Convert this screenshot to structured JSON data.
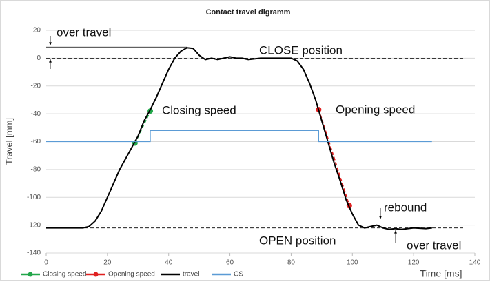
{
  "chart_data": {
    "type": "line",
    "title": "Contact travel digramm",
    "xlabel": "Time [ms]",
    "ylabel": "Travel [mm]",
    "xlim": [
      0,
      140
    ],
    "xticks": [
      0,
      20,
      40,
      60,
      80,
      100,
      120,
      140
    ],
    "ylim": [
      -140,
      20
    ],
    "yticks": [
      20,
      0,
      -20,
      -40,
      -60,
      -80,
      -100,
      -120,
      -140
    ],
    "grid": true,
    "hlines": [
      8,
      0,
      -122
    ],
    "series": [
      {
        "name": "Closing speed",
        "color": "#22a64a",
        "dashed": true,
        "markers": true,
        "x": [
          29,
          34
        ],
        "values": [
          -61,
          -38
        ]
      },
      {
        "name": "Opening speed",
        "color": "#e02020",
        "dashed": true,
        "markers": true,
        "x": [
          89,
          99
        ],
        "values": [
          -37,
          -106
        ]
      },
      {
        "name": "travel",
        "color": "#000000",
        "x": [
          0,
          12,
          14,
          16,
          18,
          20,
          22,
          24,
          26,
          28,
          30,
          32,
          34,
          36,
          38,
          40,
          42,
          44,
          46,
          48,
          50,
          52,
          54,
          56,
          58,
          60,
          62,
          64,
          66,
          70,
          80,
          82,
          84,
          86,
          88,
          90,
          92,
          94,
          96,
          98,
          100,
          102,
          104,
          106,
          108,
          110,
          112,
          114,
          116,
          120,
          124,
          126
        ],
        "values": [
          -122,
          -122,
          -121,
          -117,
          -110,
          -100,
          -90,
          -80,
          -72,
          -64,
          -56,
          -45,
          -37,
          -28,
          -18,
          -8,
          0,
          5,
          7.5,
          7,
          2,
          -1,
          0,
          -1,
          0,
          1,
          0,
          0,
          -1,
          0,
          0,
          -2,
          -8,
          -18,
          -30,
          -45,
          -60,
          -75,
          -88,
          -102,
          -112,
          -120,
          -122,
          -121,
          -120,
          -122,
          -123,
          -122.5,
          -123,
          -122,
          -122.5,
          -122
        ]
      },
      {
        "name": "CS",
        "color": "#5b9bd5",
        "x": [
          0,
          34,
          34,
          89,
          89,
          126
        ],
        "values": [
          -60,
          -60,
          -52,
          -52,
          -60,
          -60
        ]
      }
    ],
    "annotations": [
      "over travel",
      "CLOSE position",
      "Closing speed",
      "Opening speed",
      "rebound",
      "OPEN position",
      "over travel"
    ]
  }
}
